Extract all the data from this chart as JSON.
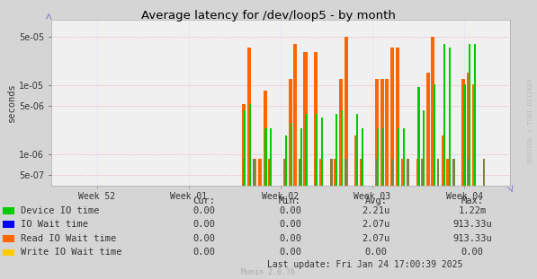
{
  "title": "Average latency for /dev/loop5 - by month",
  "ylabel": "seconds",
  "background_color": "#d5d5d5",
  "plot_background": "#f0f0f0",
  "grid_color_x": "#ccccff",
  "grid_color_y": "#ccccff",
  "redline_color": "#ff9999",
  "x_labels": [
    "Week 52",
    "Week 01",
    "Week 02",
    "Week 03",
    "Week 04"
  ],
  "x_tick_pos": [
    0.1,
    0.3,
    0.5,
    0.7,
    0.9
  ],
  "yticks": [
    5e-07,
    1e-06,
    5e-06,
    1e-05,
    5e-05
  ],
  "ylim_min": 3.5e-07,
  "ylim_max": 9e-05,
  "xlim_min": 0.0,
  "xlim_max": 1.0,
  "legend_labels": [
    "Device IO time",
    "IO Wait time",
    "Read IO Wait time",
    "Write IO Wait time"
  ],
  "legend_colors": [
    "#00cc00",
    "#0000ff",
    "#ff6600",
    "#ffcc00"
  ],
  "legend_cur": [
    "0.00",
    "0.00",
    "0.00",
    "0.00"
  ],
  "legend_min": [
    "0.00",
    "0.00",
    "0.00",
    "0.00"
  ],
  "legend_avg": [
    "2.21u",
    "2.07u",
    "2.07u",
    "0.00"
  ],
  "legend_max": [
    "1.22m",
    "913.33u",
    "913.33u",
    "0.00"
  ],
  "footer": "Munin 2.0.76",
  "last_update": "Last update: Fri Jan 24 17:00:39 2025",
  "watermark": "RRDTOOL / TOBI OETIKER",
  "orange_bars": [
    [
      0.42,
      5e-06
    ],
    [
      0.432,
      3.5e-05
    ],
    [
      0.443,
      5e-07
    ],
    [
      0.455,
      5e-07
    ],
    [
      0.466,
      8e-06
    ],
    [
      0.477,
      5e-07
    ],
    [
      0.51,
      5e-07
    ],
    [
      0.521,
      1.2e-05
    ],
    [
      0.532,
      4e-05
    ],
    [
      0.543,
      5e-07
    ],
    [
      0.554,
      3e-05
    ],
    [
      0.577,
      3e-05
    ],
    [
      0.588,
      5e-07
    ],
    [
      0.62,
      5e-07
    ],
    [
      0.632,
      1.2e-05
    ],
    [
      0.643,
      5e-05
    ],
    [
      0.665,
      1.5e-06
    ],
    [
      0.677,
      5e-07
    ],
    [
      0.71,
      1.2e-05
    ],
    [
      0.721,
      1.2e-05
    ],
    [
      0.732,
      1.2e-05
    ],
    [
      0.743,
      3.5e-05
    ],
    [
      0.755,
      3.5e-05
    ],
    [
      0.766,
      5e-07
    ],
    [
      0.799,
      5e-07
    ],
    [
      0.81,
      5e-07
    ],
    [
      0.821,
      1.5e-05
    ],
    [
      0.832,
      5e-05
    ],
    [
      0.854,
      1.5e-06
    ],
    [
      0.865,
      5e-07
    ],
    [
      0.898,
      1.2e-05
    ],
    [
      0.91,
      1.5e-05
    ],
    [
      0.921,
      1e-05
    ]
  ],
  "green_bars": [
    [
      0.422,
      4e-06
    ],
    [
      0.434,
      5e-06
    ],
    [
      0.468,
      2e-06
    ],
    [
      0.479,
      2e-06
    ],
    [
      0.512,
      1.5e-06
    ],
    [
      0.523,
      2.5e-06
    ],
    [
      0.545,
      2e-06
    ],
    [
      0.556,
      3.5e-06
    ],
    [
      0.579,
      3.5e-06
    ],
    [
      0.59,
      3e-06
    ],
    [
      0.622,
      3.5e-06
    ],
    [
      0.634,
      4e-06
    ],
    [
      0.667,
      3.5e-06
    ],
    [
      0.678,
      2e-06
    ],
    [
      0.712,
      2e-06
    ],
    [
      0.724,
      2e-06
    ],
    [
      0.757,
      2e-06
    ],
    [
      0.768,
      2e-06
    ],
    [
      0.801,
      9e-06
    ],
    [
      0.812,
      4e-06
    ],
    [
      0.835,
      1e-05
    ],
    [
      0.857,
      4e-05
    ],
    [
      0.868,
      3.5e-05
    ],
    [
      0.901,
      1e-05
    ],
    [
      0.912,
      4e-05
    ],
    [
      0.923,
      4e-05
    ]
  ],
  "gray_bars": [
    [
      0.42,
      5e-07
    ],
    [
      0.443,
      5e-07
    ],
    [
      0.477,
      5e-07
    ],
    [
      0.51,
      5e-07
    ],
    [
      0.543,
      5e-07
    ],
    [
      0.577,
      5e-07
    ],
    [
      0.61,
      5e-07
    ],
    [
      0.643,
      5e-07
    ],
    [
      0.677,
      5e-07
    ],
    [
      0.71,
      5e-07
    ],
    [
      0.743,
      5e-07
    ],
    [
      0.777,
      5e-07
    ],
    [
      0.81,
      5e-07
    ],
    [
      0.843,
      5e-07
    ],
    [
      0.877,
      5e-07
    ],
    [
      0.91,
      5e-07
    ],
    [
      0.943,
      5e-07
    ]
  ]
}
